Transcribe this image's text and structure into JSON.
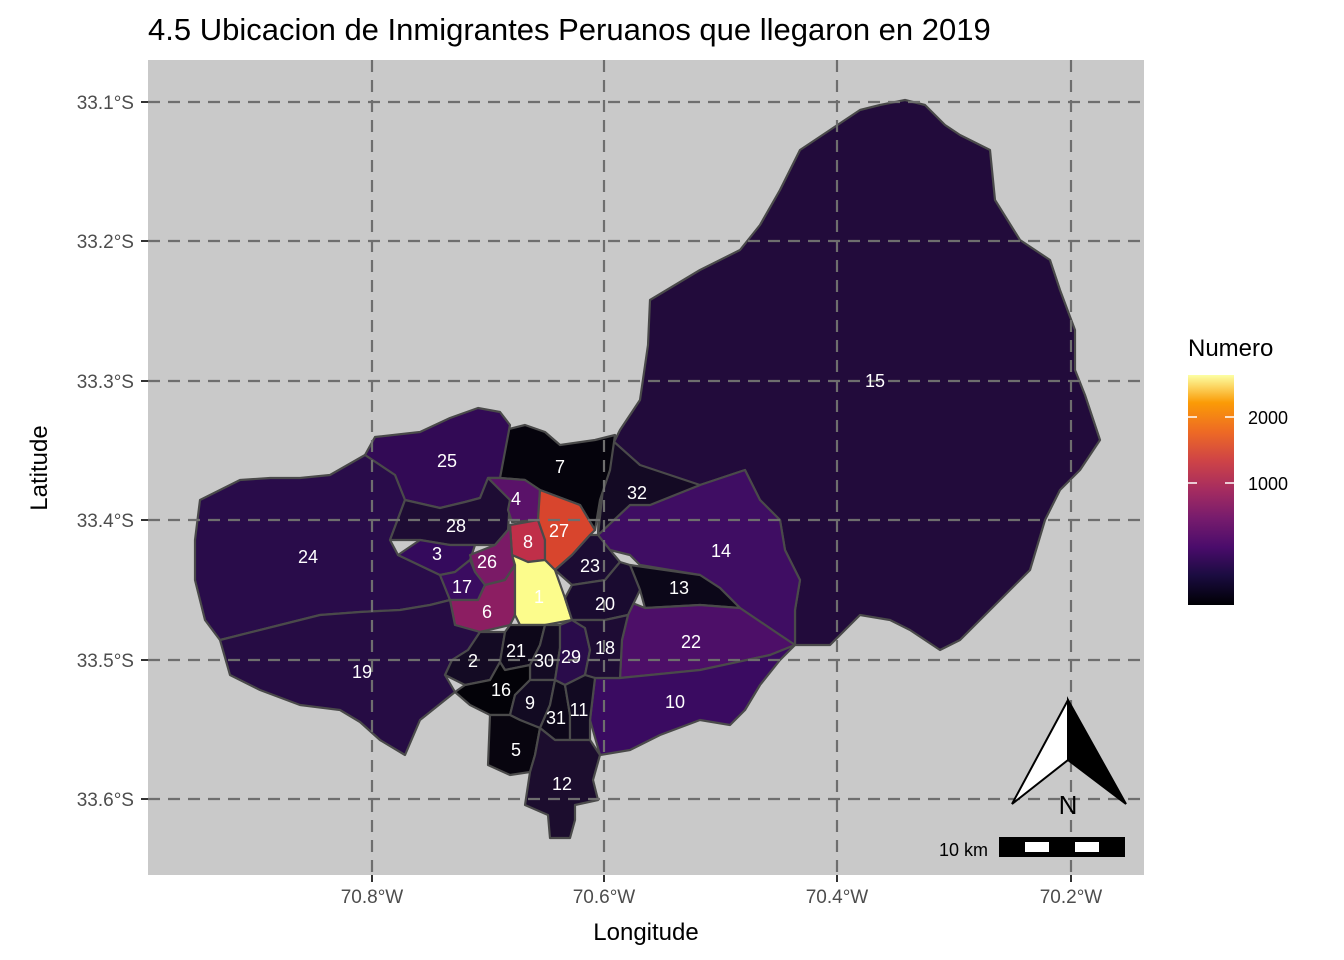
{
  "title": "4.5 Ubicacion de Inmigrantes Peruanos que llegaron en 2019",
  "xlabel": "Longitude",
  "ylabel": "Latitude",
  "x_ticks": [
    "70.8°W",
    "70.6°W",
    "70.4°W",
    "70.2°W"
  ],
  "y_ticks": [
    "33.1°S",
    "33.2°S",
    "33.3°S",
    "33.4°S",
    "33.5°S",
    "33.6°S"
  ],
  "legend": {
    "title": "Numero",
    "ticks": [
      "2000",
      "1000"
    ],
    "palette": "inferno"
  },
  "scale_bar": {
    "label": "10 km"
  },
  "north_arrow": {
    "label": "N"
  },
  "colors": {
    "panel_background": "#c9c9c9",
    "grid_line": "#6e6e6e",
    "region_border": "#4a4a4a"
  },
  "regions": [
    {
      "id": "1",
      "label": "1",
      "color": "#fcfc8c"
    },
    {
      "id": "2",
      "label": "2",
      "color": "#140b24"
    },
    {
      "id": "3",
      "label": "3",
      "color": "#340a5c"
    },
    {
      "id": "4",
      "label": "4",
      "color": "#5a1269"
    },
    {
      "id": "5",
      "label": "5",
      "color": "#08050f"
    },
    {
      "id": "6",
      "label": "6",
      "color": "#8c1e62"
    },
    {
      "id": "7",
      "label": "7",
      "color": "#05030c"
    },
    {
      "id": "8",
      "label": "8",
      "color": "#c02f49"
    },
    {
      "id": "9",
      "label": "9",
      "color": "#120a22"
    },
    {
      "id": "10",
      "label": "10",
      "color": "#3a0b61"
    },
    {
      "id": "11",
      "label": "11",
      "color": "#120a22"
    },
    {
      "id": "12",
      "label": "12",
      "color": "#1c0d2e"
    },
    {
      "id": "13",
      "label": "13",
      "color": "#0c0719"
    },
    {
      "id": "14",
      "label": "14",
      "color": "#3f0d63"
    },
    {
      "id": "15",
      "label": "15",
      "color": "#220b3b"
    },
    {
      "id": "16",
      "label": "16",
      "color": "#030208"
    },
    {
      "id": "17",
      "label": "17",
      "color": "#3a0c60"
    },
    {
      "id": "18",
      "label": "18",
      "color": "#1e0c34"
    },
    {
      "id": "19",
      "label": "19",
      "color": "#260c44"
    },
    {
      "id": "20",
      "label": "20",
      "color": "#1a0b30"
    },
    {
      "id": "21",
      "label": "21",
      "color": "#0d0719"
    },
    {
      "id": "22",
      "label": "22",
      "color": "#4d0f68"
    },
    {
      "id": "23",
      "label": "23",
      "color": "#1c0c33"
    },
    {
      "id": "24",
      "label": "24",
      "color": "#290c4a"
    },
    {
      "id": "25",
      "label": "25",
      "color": "#320a55"
    },
    {
      "id": "26",
      "label": "26",
      "color": "#7a1a66"
    },
    {
      "id": "27",
      "label": "27",
      "color": "#d8452d"
    },
    {
      "id": "28",
      "label": "28",
      "color": "#1e0c34"
    },
    {
      "id": "29",
      "label": "29",
      "color": "#2a0c4b"
    },
    {
      "id": "30",
      "label": "30",
      "color": "#140b24"
    },
    {
      "id": "31",
      "label": "31",
      "color": "#0d0719"
    },
    {
      "id": "32",
      "label": "32",
      "color": "#140a24"
    }
  ]
}
